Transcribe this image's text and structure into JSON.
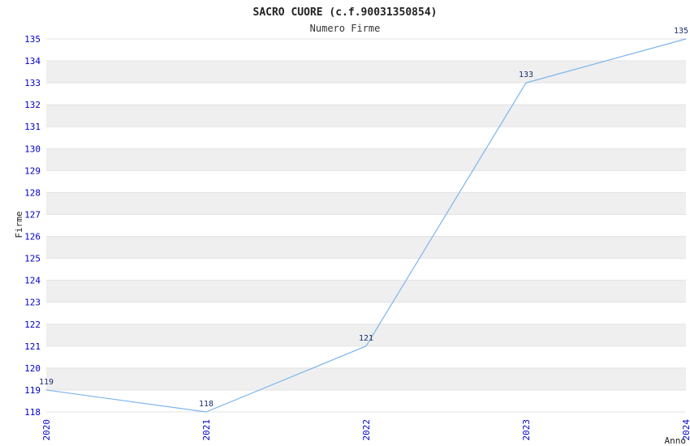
{
  "chart_data": {
    "type": "line",
    "title": "SACRO CUORE (c.f.90031350854)",
    "subtitle": "Numero Firme",
    "xlabel": "Anno",
    "ylabel": "Firme",
    "x": [
      "2020",
      "2021",
      "2022",
      "2023",
      "2024"
    ],
    "series": [
      {
        "name": "Numero Firme",
        "values": [
          119,
          118,
          121,
          133,
          135
        ]
      }
    ],
    "point_labels": [
      "119",
      "118",
      "121",
      "133",
      "135"
    ],
    "ylim": [
      118,
      135
    ],
    "ytick_step": 1,
    "yticks": [
      118,
      119,
      120,
      121,
      122,
      123,
      124,
      125,
      126,
      127,
      128,
      129,
      130,
      131,
      132,
      133,
      134,
      135
    ],
    "grid": "horizontal-stripes",
    "legend": "none",
    "colors": {
      "line": "#7cb5ec",
      "tick_label": "#0000cc",
      "point_label": "#1a2e6e",
      "stripe": "#efefef",
      "band_alt": "#ffffff",
      "gridline": "#e3e3e3",
      "title_text": "#222222",
      "axis_label": "#222222",
      "background": "#ffffff"
    }
  }
}
